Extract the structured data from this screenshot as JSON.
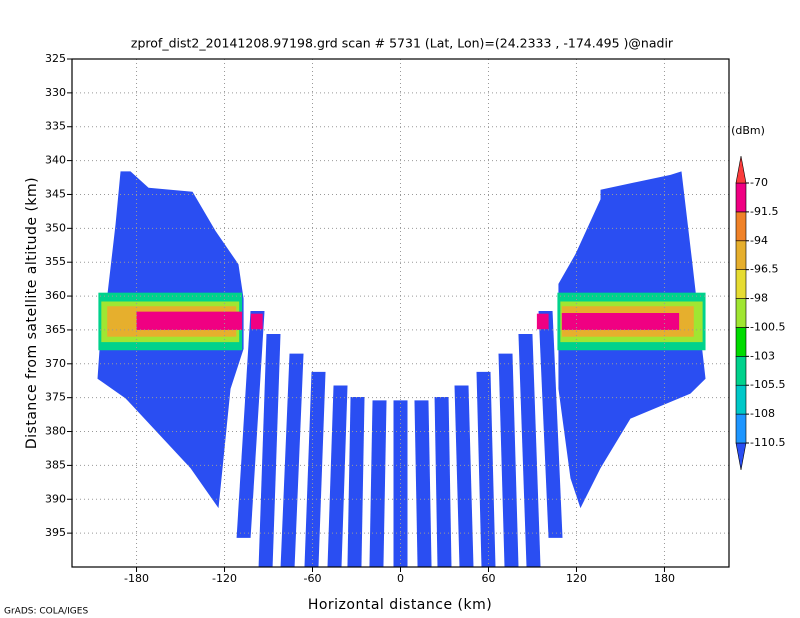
{
  "chart_data": {
    "type": "swath",
    "title": "zprof_dist2_20141208.97198.grd  scan # 5731  (Lat, Lon)=(24.2333 , -174.495 )@nadir",
    "x_label": "Horizontal distance (km)",
    "y_label": "Distance from satellite altitude (km)",
    "credit": "GrADS: COLA/IGES",
    "xlim": [
      -224,
      224
    ],
    "ylim": [
      325,
      400
    ],
    "y_inverted": true,
    "xticks": [
      -180,
      -120,
      -60,
      0,
      60,
      120,
      180
    ],
    "yticks": [
      325,
      330,
      335,
      340,
      345,
      350,
      355,
      360,
      365,
      370,
      375,
      380,
      385,
      390,
      395
    ],
    "grid": true,
    "colorbar": {
      "unit": "(dBm)",
      "levels": [
        -110.5,
        -108,
        -105.5,
        -103,
        -100.5,
        -98,
        -96.5,
        -94,
        -91.5,
        -70
      ],
      "colors": [
        "#2a4ef2",
        "#1e96ff",
        "#00c8c8",
        "#00d28c",
        "#00dc00",
        "#a0e632",
        "#e6dc32",
        "#e6af2d",
        "#f08228",
        "#f00082",
        "#fa3c3c"
      ]
    },
    "wings": [
      {
        "level": 0,
        "x": [
          -190.9,
          -184.1,
          -171.8,
          -141.8,
          -126.1,
          -110.5,
          -107.0,
          -107.0,
          -115.9,
          -124.1,
          -143.2,
          -187.5,
          -206.6,
          -204.5,
          -199.8,
          -194.3
        ],
        "y": [
          341.6,
          341.6,
          344.0,
          344.6,
          350.4,
          355.3,
          360.4,
          367.8,
          373.7,
          391.3,
          385.4,
          375.1,
          372.2,
          365.6,
          359.7,
          349.4
        ]
      },
      {
        "level": 0,
        "x": [
          136.4,
          184.1,
          191.6,
          199.1,
          208.0,
          197.7,
          156.8,
          136.4,
          122.7,
          115.9,
          107.7,
          107.7,
          119.3,
          136.4
        ],
        "y": [
          344.3,
          342.1,
          341.6,
          355.3,
          372.2,
          374.4,
          378.1,
          385.4,
          391.3,
          386.9,
          373.7,
          358.2,
          353.8,
          345.7
        ]
      }
    ],
    "strips": [
      {
        "level": 0,
        "x": [
          -97.5,
          -107.0
        ],
        "y": [
          362.2,
          395.7
        ]
      },
      {
        "level": 0,
        "x": [
          -86.6,
          -92.0
        ],
        "y": [
          365.6,
          400
        ]
      },
      {
        "level": 0,
        "x": [
          -70.9,
          -77.0
        ],
        "y": [
          368.5,
          400
        ]
      },
      {
        "level": 0,
        "x": [
          -55.9,
          -60.7
        ],
        "y": [
          371.2,
          400
        ]
      },
      {
        "level": 0,
        "x": [
          -40.9,
          -45.0
        ],
        "y": [
          373.2,
          400
        ]
      },
      {
        "level": 0,
        "x": [
          -29.3,
          -31.4
        ],
        "y": [
          374.9,
          400
        ]
      },
      {
        "level": 0,
        "x": [
          -14.3,
          -16.4
        ],
        "y": [
          375.4,
          400
        ]
      },
      {
        "level": 0,
        "x": [
          0,
          0
        ],
        "y": [
          375.4,
          400
        ]
      },
      {
        "level": 0,
        "x": [
          14.3,
          16.4
        ],
        "y": [
          375.4,
          400
        ]
      },
      {
        "level": 0,
        "x": [
          28.0,
          30.0
        ],
        "y": [
          374.9,
          400
        ]
      },
      {
        "level": 0,
        "x": [
          41.6,
          45.0
        ],
        "y": [
          373.2,
          400
        ]
      },
      {
        "level": 0,
        "x": [
          56.6,
          60.0
        ],
        "y": [
          371.2,
          400
        ]
      },
      {
        "level": 0,
        "x": [
          71.6,
          75.7
        ],
        "y": [
          368.5,
          400
        ]
      },
      {
        "level": 0,
        "x": [
          85.2,
          90.7
        ],
        "y": [
          365.6,
          400
        ]
      },
      {
        "level": 0,
        "x": [
          98.9,
          105.7
        ],
        "y": [
          362.2,
          395.7
        ]
      }
    ],
    "bands": [
      {
        "level": 3,
        "x": [
          -206,
          -108
        ],
        "y": [
          359.5,
          368
        ]
      },
      {
        "level": 5,
        "x": [
          -204,
          -110
        ],
        "y": [
          360.8,
          366.8
        ]
      },
      {
        "level": 7,
        "x": [
          -200,
          -112
        ],
        "y": [
          361.5,
          366
        ]
      },
      {
        "level": 9,
        "x": [
          -180,
          -108
        ],
        "y": [
          362.3,
          365
        ]
      },
      {
        "level": 3,
        "x": [
          107,
          208
        ],
        "y": [
          359.5,
          368
        ]
      },
      {
        "level": 5,
        "x": [
          109,
          206
        ],
        "y": [
          360.8,
          366.8
        ]
      },
      {
        "level": 7,
        "x": [
          110,
          200
        ],
        "y": [
          361.5,
          366
        ]
      },
      {
        "level": 9,
        "x": [
          110,
          190
        ],
        "y": [
          362.5,
          365
        ]
      },
      {
        "level": 9,
        "x": [
          -102,
          -94
        ],
        "y": [
          362.6,
          364.9
        ]
      },
      {
        "level": 9,
        "x": [
          93,
          101
        ],
        "y": [
          362.6,
          364.9
        ]
      }
    ]
  }
}
